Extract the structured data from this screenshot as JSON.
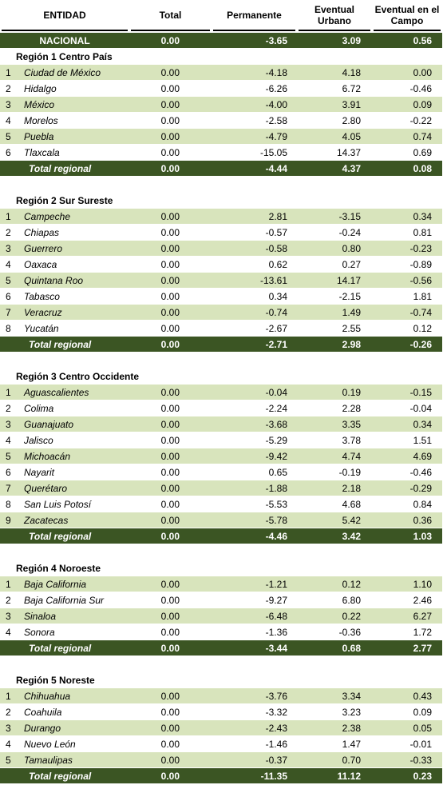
{
  "header": {
    "columns": [
      "ENTIDAD",
      "Total",
      "Permanente",
      "Eventual Urbano",
      "Eventual en el Campo"
    ]
  },
  "national": {
    "label": "NACIONAL",
    "values": [
      "0.00",
      "-3.65",
      "3.09",
      "0.56"
    ]
  },
  "regions": [
    {
      "title": "Región 1 Centro País",
      "rows": [
        [
          "1",
          "Ciudad de México",
          "0.00",
          "-4.18",
          "4.18",
          "0.00"
        ],
        [
          "2",
          "Hidalgo",
          "0.00",
          "-6.26",
          "6.72",
          "-0.46"
        ],
        [
          "3",
          "México",
          "0.00",
          "-4.00",
          "3.91",
          "0.09"
        ],
        [
          "4",
          "Morelos",
          "0.00",
          "-2.58",
          "2.80",
          "-0.22"
        ],
        [
          "5",
          "Puebla",
          "0.00",
          "-4.79",
          "4.05",
          "0.74"
        ],
        [
          "6",
          "Tlaxcala",
          "0.00",
          "-15.05",
          "14.37",
          "0.69"
        ]
      ],
      "total": {
        "label": "Total regional",
        "values": [
          "0.00",
          "-4.44",
          "4.37",
          "0.08"
        ]
      }
    },
    {
      "title": "Región 2 Sur Sureste",
      "rows": [
        [
          "1",
          "Campeche",
          "0.00",
          "2.81",
          "-3.15",
          "0.34"
        ],
        [
          "2",
          "Chiapas",
          "0.00",
          "-0.57",
          "-0.24",
          "0.81"
        ],
        [
          "3",
          "Guerrero",
          "0.00",
          "-0.58",
          "0.80",
          "-0.23"
        ],
        [
          "4",
          "Oaxaca",
          "0.00",
          "0.62",
          "0.27",
          "-0.89"
        ],
        [
          "5",
          "Quintana Roo",
          "0.00",
          "-13.61",
          "14.17",
          "-0.56"
        ],
        [
          "6",
          "Tabasco",
          "0.00",
          "0.34",
          "-2.15",
          "1.81"
        ],
        [
          "7",
          "Veracruz",
          "0.00",
          "-0.74",
          "1.49",
          "-0.74"
        ],
        [
          "8",
          "Yucatán",
          "0.00",
          "-2.67",
          "2.55",
          "0.12"
        ]
      ],
      "total": {
        "label": "Total regional",
        "values": [
          "0.00",
          "-2.71",
          "2.98",
          "-0.26"
        ]
      }
    },
    {
      "title": "Región 3 Centro Occidente",
      "rows": [
        [
          "1",
          "Aguascalientes",
          "0.00",
          "-0.04",
          "0.19",
          "-0.15"
        ],
        [
          "2",
          "Colima",
          "0.00",
          "-2.24",
          "2.28",
          "-0.04"
        ],
        [
          "3",
          "Guanajuato",
          "0.00",
          "-3.68",
          "3.35",
          "0.34"
        ],
        [
          "4",
          "Jalisco",
          "0.00",
          "-5.29",
          "3.78",
          "1.51"
        ],
        [
          "5",
          "Michoacán",
          "0.00",
          "-9.42",
          "4.74",
          "4.69"
        ],
        [
          "6",
          "Nayarit",
          "0.00",
          "0.65",
          "-0.19",
          "-0.46"
        ],
        [
          "7",
          "Querétaro",
          "0.00",
          "-1.88",
          "2.18",
          "-0.29"
        ],
        [
          "8",
          "San Luis Potosí",
          "0.00",
          "-5.53",
          "4.68",
          "0.84"
        ],
        [
          "9",
          "Zacatecas",
          "0.00",
          "-5.78",
          "5.42",
          "0.36"
        ]
      ],
      "total": {
        "label": "Total regional",
        "values": [
          "0.00",
          "-4.46",
          "3.42",
          "1.03"
        ]
      }
    },
    {
      "title": "Región 4 Noroeste",
      "rows": [
        [
          "1",
          "Baja California",
          "0.00",
          "-1.21",
          "0.12",
          "1.10"
        ],
        [
          "2",
          "Baja California Sur",
          "0.00",
          "-9.27",
          "6.80",
          "2.46"
        ],
        [
          "3",
          "Sinaloa",
          "0.00",
          "-6.48",
          "0.22",
          "6.27"
        ],
        [
          "4",
          "Sonora",
          "0.00",
          "-1.36",
          "-0.36",
          "1.72"
        ]
      ],
      "total": {
        "label": "Total regional",
        "values": [
          "0.00",
          "-3.44",
          "0.68",
          "2.77"
        ]
      }
    },
    {
      "title": "Región 5 Noreste",
      "rows": [
        [
          "1",
          "Chihuahua",
          "0.00",
          "-3.76",
          "3.34",
          "0.43"
        ],
        [
          "2",
          "Coahuila",
          "0.00",
          "-3.32",
          "3.23",
          "0.09"
        ],
        [
          "3",
          "Durango",
          "0.00",
          "-2.43",
          "2.38",
          "0.05"
        ],
        [
          "4",
          "Nuevo León",
          "0.00",
          "-1.46",
          "1.47",
          "-0.01"
        ],
        [
          "5",
          "Tamaulipas",
          "0.00",
          "-0.37",
          "0.70",
          "-0.33"
        ]
      ],
      "total": {
        "label": "Total regional",
        "values": [
          "0.00",
          "-11.35",
          "11.12",
          "0.23"
        ]
      }
    }
  ]
}
